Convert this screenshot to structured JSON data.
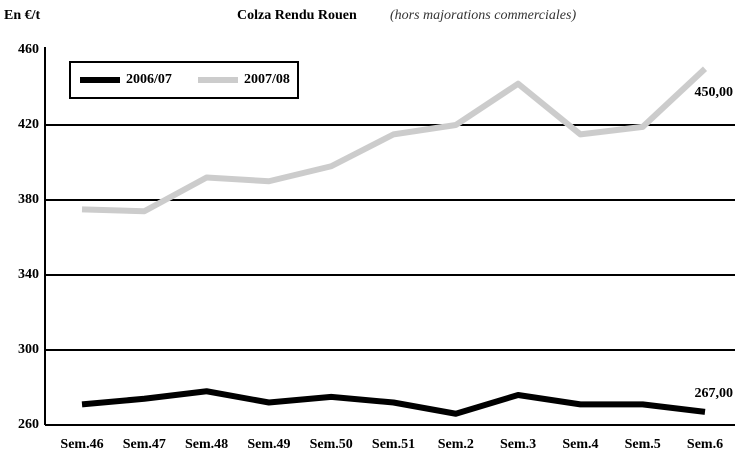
{
  "chart_data": {
    "type": "line",
    "title": "Colza Rendu Rouen",
    "subtitle": "(hors majorations commerciales)",
    "y_label": "En €/t",
    "categories": [
      "Sem.46",
      "Sem.47",
      "Sem.48",
      "Sem.49",
      "Sem.50",
      "Sem.51",
      "Sem.2",
      "Sem.3",
      "Sem.4",
      "Sem.5",
      "Sem.6"
    ],
    "series": [
      {
        "name": "2006/07",
        "color": "#000000",
        "values": [
          271,
          274,
          278,
          272,
          275,
          272,
          266,
          276,
          271,
          271,
          267
        ],
        "value_labels": [
          null,
          null,
          null,
          null,
          null,
          null,
          null,
          null,
          null,
          null,
          "267,00"
        ]
      },
      {
        "name": "2007/08",
        "color": "#cccccc",
        "values": [
          375,
          374,
          392,
          390,
          398,
          415,
          420,
          442,
          415,
          419,
          450
        ],
        "value_labels": [
          null,
          null,
          null,
          null,
          null,
          null,
          null,
          null,
          null,
          null,
          "450,00"
        ]
      }
    ],
    "ylim": [
      260,
      460
    ],
    "yticks": [
      260,
      300,
      340,
      380,
      420,
      460
    ],
    "grid": true,
    "legend": "top-left"
  }
}
